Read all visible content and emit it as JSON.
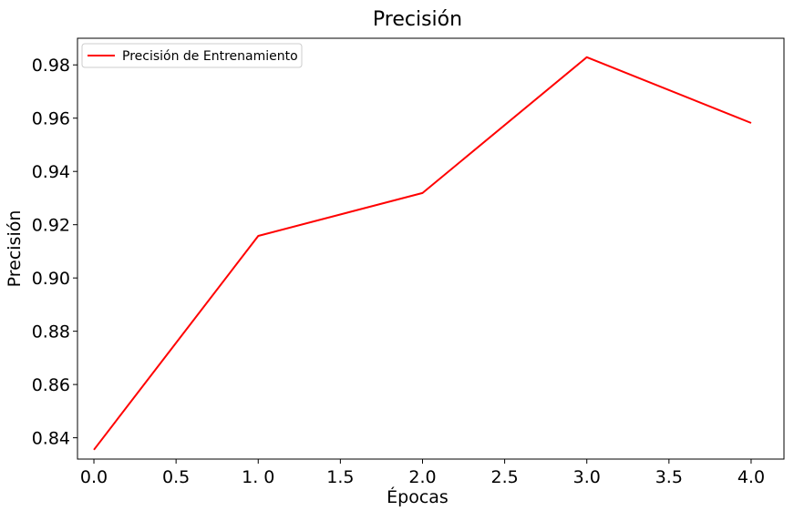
{
  "chart_data": {
    "type": "line",
    "title": "Precisión",
    "xlabel": "Épocas",
    "ylabel": "Precisión",
    "xlim": [
      -0.1,
      4.2
    ],
    "ylim": [
      0.832,
      0.99
    ],
    "xticks": [
      0.0,
      0.5,
      1.0,
      1.5,
      2.0,
      2.5,
      3.0,
      3.5,
      4.0
    ],
    "xtick_labels": [
      "0.0",
      "0.5",
      "1. 0",
      "1.5",
      "2.0",
      "2.5",
      "3.0",
      "3.5",
      "4.0"
    ],
    "yticks": [
      0.84,
      0.86,
      0.88,
      0.9,
      0.92,
      0.94,
      0.96,
      0.98
    ],
    "ytick_labels": [
      "0.84",
      "0.86",
      "0.88",
      "0.90",
      "0.92",
      "0.94",
      "0.96",
      "0.98"
    ],
    "grid": false,
    "legend_position": "top-left",
    "series": [
      {
        "name": "Precisión de Entrenamiento",
        "color": "#ff0000",
        "x": [
          0,
          1,
          2,
          3,
          4
        ],
        "y": [
          0.8355,
          0.9158,
          0.9319,
          0.9829,
          0.9582
        ]
      }
    ]
  }
}
